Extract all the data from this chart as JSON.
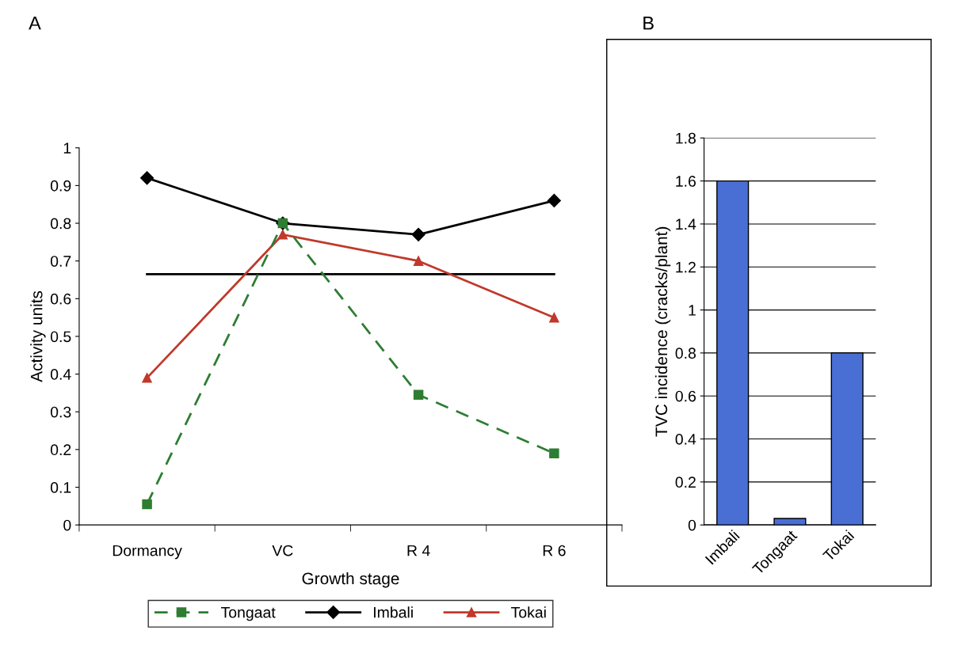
{
  "chart_data": [
    {
      "type": "line",
      "title": "A",
      "xlabel": "Growth stage",
      "ylabel": "Activity units",
      "categories": [
        "Dormancy",
        "VC",
        "R 4",
        "R 6"
      ],
      "series": [
        {
          "name": "Tongaat",
          "color": "#2e7d32",
          "values": [
            0.055,
            0.8,
            0.345,
            0.19
          ],
          "marker": "square",
          "line_style": "dashed"
        },
        {
          "name": "Imbali",
          "color": "#000000",
          "values": [
            0.92,
            0.8,
            0.77,
            0.86
          ],
          "marker": "diamond",
          "line_style": "solid"
        },
        {
          "name": "Tokai",
          "color": "#c0392b",
          "values": [
            0.39,
            0.77,
            0.7,
            0.55
          ],
          "marker": "triangle",
          "line_style": "solid"
        },
        {
          "color": "#000000",
          "values": [
            0.665,
            0.665,
            0.665,
            0.665
          ],
          "marker": "none",
          "line_style": "solid"
        }
      ],
      "ylim": [
        0,
        1
      ],
      "yticks": [
        0,
        0.1,
        0.2,
        0.3,
        0.4,
        0.5,
        0.6,
        0.7,
        0.8,
        0.9,
        1
      ],
      "grid": false,
      "legend": "bottom"
    },
    {
      "type": "bar",
      "title": "B",
      "ylabel": "TVC incidence (cracks/plant)",
      "categories": [
        "Imbali",
        "Tongaat",
        "Tokai"
      ],
      "values": [
        1.6,
        0.03,
        0.8
      ],
      "color": "#4a6fd4",
      "ylim": [
        0,
        1.8
      ],
      "yticks": [
        0,
        0.2,
        0.4,
        0.6,
        0.8,
        1,
        1.2,
        1.4,
        1.6,
        1.8
      ],
      "grid": "y"
    }
  ]
}
